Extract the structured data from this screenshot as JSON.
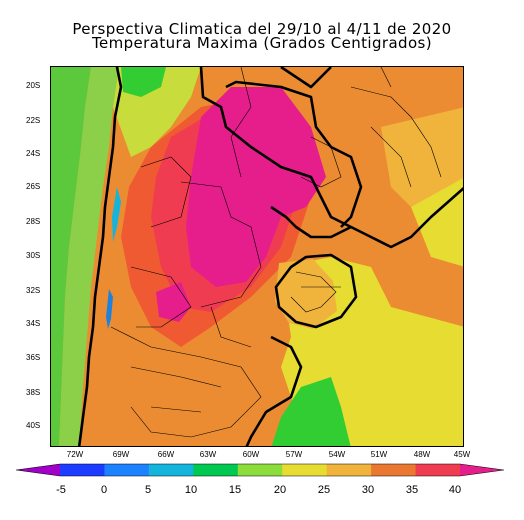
{
  "title": {
    "line1": "Perspectiva Climatica del 29/10 al 4/11 de 2020",
    "line2": "Temperatura Maxima (Grados Centigrados)"
  },
  "map": {
    "latitude_labels": [
      "20S",
      "22S",
      "24S",
      "26S",
      "28S",
      "30S",
      "32S",
      "34S",
      "36S",
      "38S",
      "40S"
    ],
    "longitude_labels": [
      "72W",
      "69W",
      "66W",
      "63W",
      "60W",
      "57W",
      "54W",
      "51W",
      "48W",
      "45W"
    ],
    "colors": {
      "green": "#32cd32",
      "light_green": "#86d94a",
      "yellow_green": "#c8dc3c",
      "yellow": "#e6dc32",
      "light_orange": "#f0b43c",
      "orange": "#eb8c32",
      "red_orange": "#f05a32",
      "red": "#f03c50",
      "magenta": "#e61e8c",
      "blue": "#1e82dc",
      "light_blue": "#14b4dc"
    }
  },
  "colorbar": {
    "labels": [
      "-5",
      "0",
      "5",
      "10",
      "15",
      "20",
      "25",
      "30",
      "35",
      "40"
    ],
    "colors": [
      "#a000c8",
      "#1e3cff",
      "#1e82ff",
      "#14b4dc",
      "#00c850",
      "#8cdc3c",
      "#e6dc32",
      "#f0b43c",
      "#eb7832",
      "#f03c50",
      "#e61e8c"
    ]
  }
}
